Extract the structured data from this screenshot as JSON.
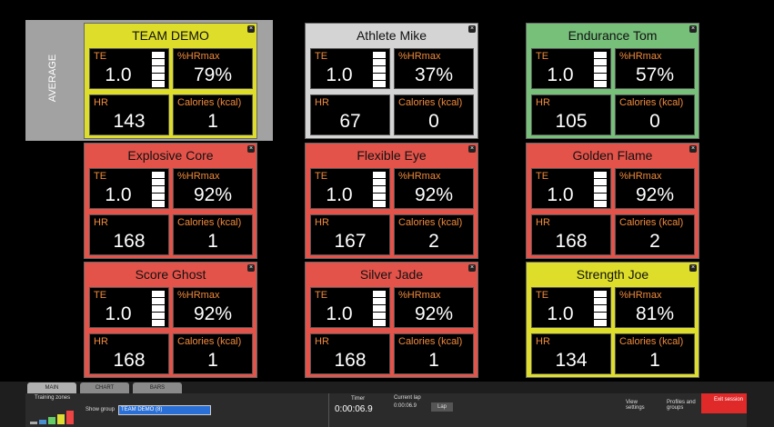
{
  "average_label": "AVERAGE",
  "labels": {
    "te": "TE",
    "hrmax": "%HRmax",
    "hr": "HR",
    "calories": "Calories (kcal)"
  },
  "cards": [
    {
      "name": "TEAM DEMO",
      "color": "#dede2a",
      "te": "1.0",
      "hrmax": "79%",
      "hr": "143",
      "calories": "1"
    },
    {
      "name": "Athlete Mike",
      "color": "#d4d4d4",
      "te": "1.0",
      "hrmax": "37%",
      "hr": "67",
      "calories": "0"
    },
    {
      "name": "Endurance Tom",
      "color": "#77c07a",
      "te": "1.0",
      "hrmax": "57%",
      "hr": "105",
      "calories": "0"
    },
    {
      "name": "Explosive Core",
      "color": "#e4534a",
      "te": "1.0",
      "hrmax": "92%",
      "hr": "168",
      "calories": "1"
    },
    {
      "name": "Flexible Eye",
      "color": "#e4534a",
      "te": "1.0",
      "hrmax": "92%",
      "hr": "167",
      "calories": "2"
    },
    {
      "name": "Golden Flame",
      "color": "#e4534a",
      "te": "1.0",
      "hrmax": "92%",
      "hr": "168",
      "calories": "2"
    },
    {
      "name": "Score Ghost",
      "color": "#e4534a",
      "te": "1.0",
      "hrmax": "92%",
      "hr": "168",
      "calories": "1"
    },
    {
      "name": "Silver Jade",
      "color": "#e4534a",
      "te": "1.0",
      "hrmax": "92%",
      "hr": "168",
      "calories": "1"
    },
    {
      "name": "Strength Joe",
      "color": "#dede2a",
      "te": "1.0",
      "hrmax": "81%",
      "hr": "134",
      "calories": "1"
    }
  ],
  "toolbar": {
    "tabs": [
      "MAIN",
      "CHART",
      "BARS"
    ],
    "training_zones": "Training zones",
    "show_group": "Show group",
    "group": "TEAM DEMO (8)",
    "timer_label": "Timer",
    "timer": "0:00:06.9",
    "lap_label": "Current lap",
    "lap": "0:00:06.9",
    "lap_button": "Lap",
    "view_settings": "View settings",
    "profiles": "Profiles and groups",
    "exit": "Exit session"
  }
}
